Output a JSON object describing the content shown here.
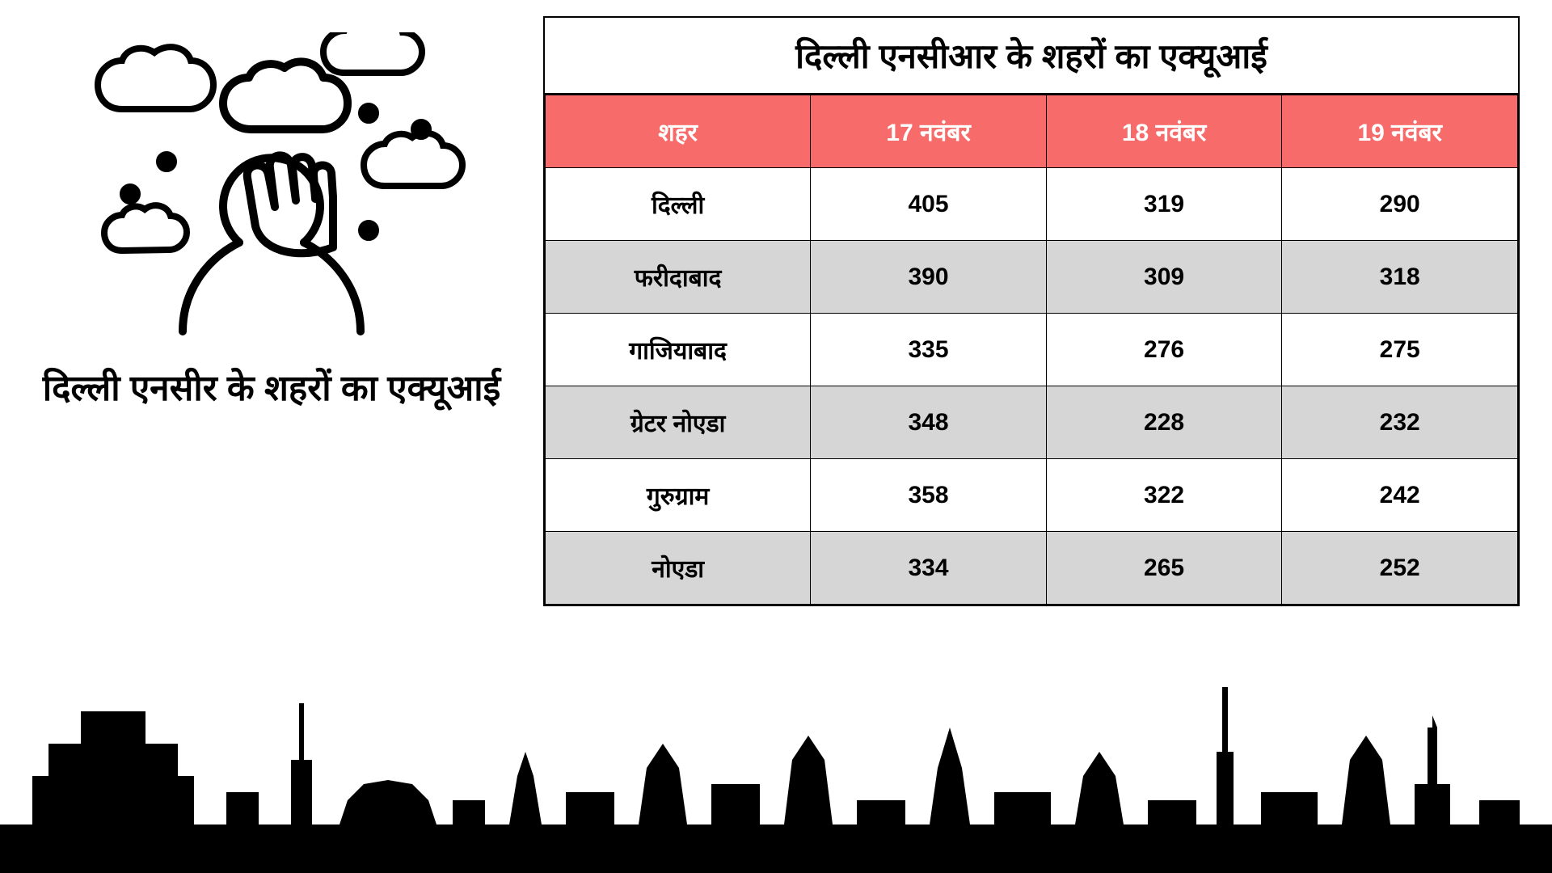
{
  "left": {
    "title": "दिल्ली एनसीर के शहरों का एक्यूआई"
  },
  "table": {
    "title": "दिल्ली एनसीआर के शहरों का एक्यूआई",
    "columns": [
      "शहर",
      "17 नवंबर",
      "18 नवंबर",
      "19 नवंबर"
    ],
    "rows": [
      [
        "दिल्ली",
        "405",
        "319",
        "290"
      ],
      [
        "फरीदाबाद",
        "390",
        "309",
        "318"
      ],
      [
        "गाजियाबाद",
        "335",
        "276",
        "275"
      ],
      [
        "ग्रेटर नोएडा",
        "348",
        "228",
        "232"
      ],
      [
        "गुरुग्राम",
        "358",
        "322",
        "242"
      ],
      [
        "नोएडा",
        "334",
        "265",
        "252"
      ]
    ],
    "header_bg": "#f86b6b",
    "header_fg": "#ffffff",
    "alt_row_bg": "#d6d6d6",
    "border_color": "#000000",
    "title_fontsize": 42,
    "header_fontsize": 30,
    "cell_fontsize": 30
  },
  "colors": {
    "background": "#ffffff",
    "text": "#000000",
    "skyline": "#000000"
  }
}
